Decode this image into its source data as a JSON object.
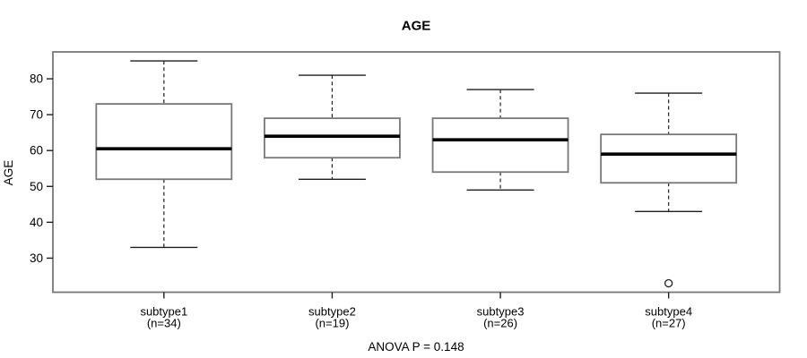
{
  "chart_data": {
    "type": "boxplot",
    "title": "AGE",
    "ylabel": "AGE",
    "annotation": "ANOVA P = 0.148",
    "yticks": [
      30,
      40,
      50,
      60,
      70,
      80
    ],
    "ylim": [
      20.5,
      87.5
    ],
    "grid": false,
    "groups": [
      {
        "label": "subtype1",
        "sublabel": "(n=34)",
        "n": 34,
        "whisker_low": 33,
        "q1": 52,
        "median": 60.5,
        "q3": 73,
        "whisker_high": 85,
        "outliers": []
      },
      {
        "label": "subtype2",
        "sublabel": "(n=19)",
        "n": 19,
        "whisker_low": 52,
        "q1": 58,
        "median": 64,
        "q3": 69,
        "whisker_high": 81,
        "outliers": []
      },
      {
        "label": "subtype3",
        "sublabel": "(n=26)",
        "n": 26,
        "whisker_low": 49,
        "q1": 54,
        "median": 63,
        "q3": 69,
        "whisker_high": 77,
        "outliers": []
      },
      {
        "label": "subtype4",
        "sublabel": "(n=27)",
        "n": 27,
        "whisker_low": 43,
        "q1": 51,
        "median": 59,
        "q3": 64.5,
        "whisker_high": 76,
        "outliers": [
          23
        ]
      }
    ]
  },
  "colors": {
    "background": "#ffffff",
    "frame": "#787878",
    "box_border": "#787878",
    "box_fill": "#ffffff",
    "line": "#1f1f1f",
    "median": "#000000",
    "text": "#000000"
  }
}
